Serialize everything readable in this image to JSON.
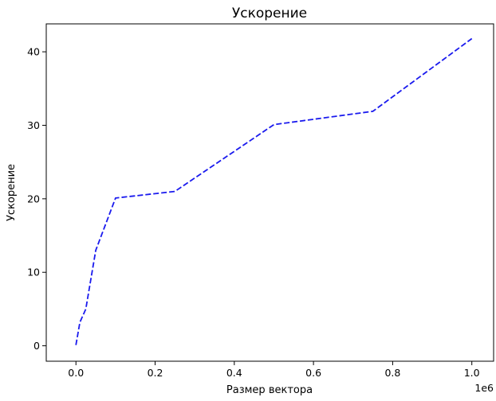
{
  "chart_data": {
    "type": "line",
    "title": "Ускорение",
    "xlabel": "Размер вектора",
    "ylabel": "Ускорение",
    "x_offset_label": "1e6",
    "xlim": [
      -0.075,
      1.055
    ],
    "ylim": [
      -2.1,
      43.8
    ],
    "grid": false,
    "x_ticks": [
      {
        "value": 0.0,
        "label": "0.0"
      },
      {
        "value": 0.2,
        "label": "0.2"
      },
      {
        "value": 0.4,
        "label": "0.4"
      },
      {
        "value": 0.6,
        "label": "0.6"
      },
      {
        "value": 0.8,
        "label": "0.8"
      },
      {
        "value": 1.0,
        "label": "1.0"
      }
    ],
    "y_ticks": [
      {
        "value": 0,
        "label": "0"
      },
      {
        "value": 10,
        "label": "10"
      },
      {
        "value": 20,
        "label": "20"
      },
      {
        "value": 30,
        "label": "30"
      },
      {
        "value": 40,
        "label": "40"
      }
    ],
    "series": [
      {
        "color": "#1a1aee",
        "line_style": "dashed",
        "x": [
          0.0,
          0.01,
          0.025,
          0.05,
          0.1,
          0.25,
          0.5,
          0.75,
          1.0
        ],
        "y": [
          0.1,
          3.2,
          5.0,
          13.0,
          20.1,
          21.0,
          30.1,
          31.9,
          41.8
        ]
      }
    ]
  }
}
